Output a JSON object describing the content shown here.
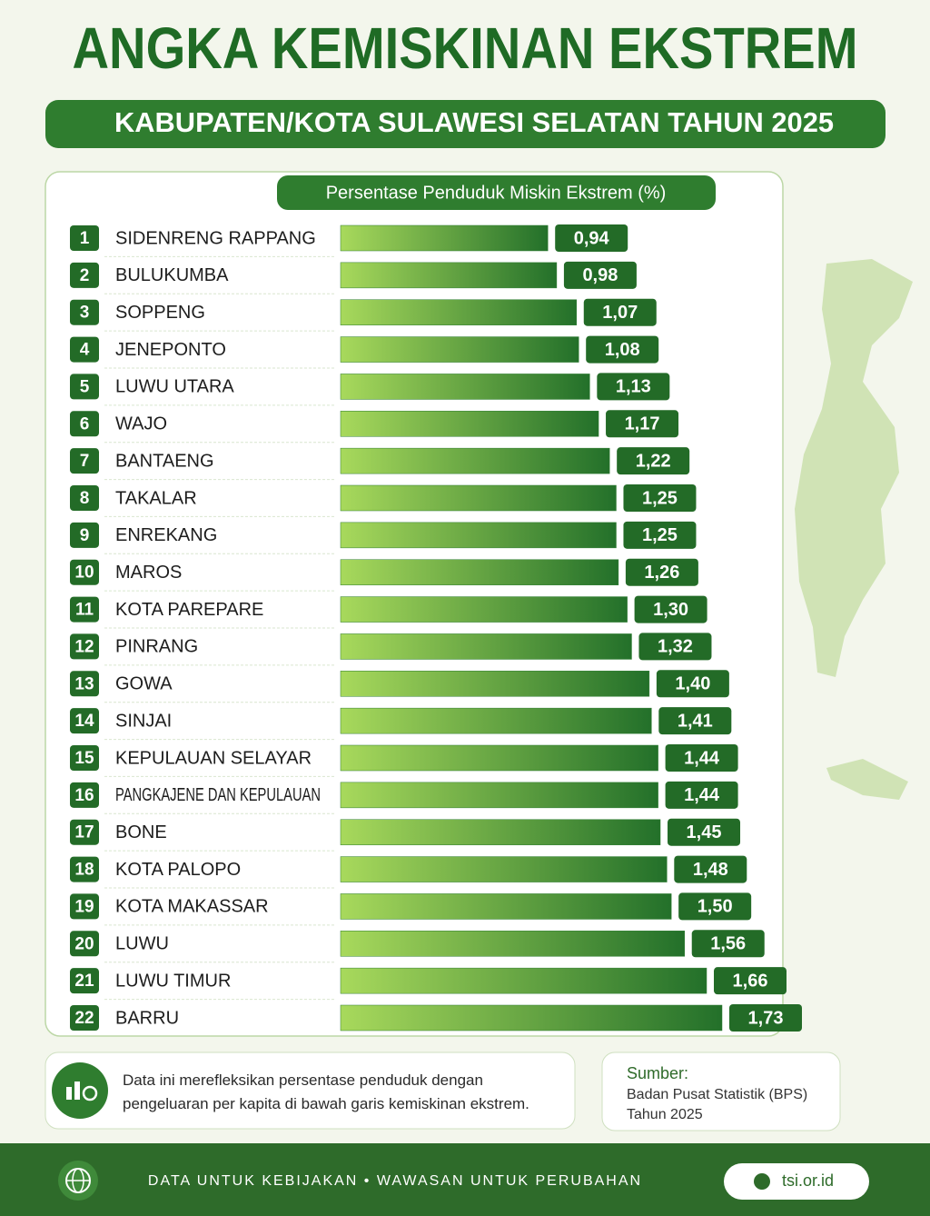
{
  "chart_data": {
    "type": "bar",
    "orientation": "horizontal",
    "title": "ANGKA KEMISKINAN EKSTREM",
    "subtitle": "KABUPATEN/KOTA SULAWESI SELATAN TAHUN 2025",
    "value_title": "Persentase Penduduk Miskin Ekstrem (%)",
    "ranks": [
      1,
      2,
      3,
      4,
      5,
      6,
      7,
      8,
      9,
      10,
      11,
      12,
      13,
      14,
      15,
      16,
      17,
      18,
      19,
      20,
      21,
      22
    ],
    "categories": [
      "SIDENRENG RAPPANG",
      "BULUKUMBA",
      "SOPPENG",
      "JENEPONTO",
      "LUWU UTARA",
      "WAJO",
      "BANTAENG",
      "TAKALAR",
      "ENREKANG",
      "MAROS",
      "KOTA PAREPARE",
      "PINRANG",
      "GOWA",
      "SINJAI",
      "KEPULAUAN SELAYAR",
      "PANGKAJENE DAN KEPULAUAN",
      "BONE",
      "KOTA PALOPO",
      "KOTA MAKASSAR",
      "LUWU",
      "LUWU TIMUR",
      "BARRU"
    ],
    "values": [
      0.94,
      0.98,
      1.07,
      1.08,
      1.13,
      1.17,
      1.22,
      1.25,
      1.25,
      1.26,
      1.3,
      1.32,
      1.4,
      1.41,
      1.44,
      1.44,
      1.45,
      1.48,
      1.5,
      1.56,
      1.66,
      1.73
    ],
    "value_labels": [
      "0,94",
      "0,98",
      "1,07",
      "1,08",
      "1,13",
      "1,17",
      "1,22",
      "1,25",
      "1,25",
      "1,26",
      "1,30",
      "1,32",
      "1,40",
      "1,41",
      "1,44",
      "1,44",
      "1,45",
      "1,48",
      "1,50",
      "1,56",
      "1,66",
      "1,73"
    ],
    "color": "#2e7d32"
  },
  "note": "Data ini merefleksikan persentase penduduk dengan pengeluaran per kapita di bawah garis kemiskinan ekstrem.",
  "source": {
    "label": "Sumber:",
    "name": "Badan Pusat Statistik (BPS)",
    "year": "Tahun 2025"
  },
  "footer": {
    "tagline": "DATA UNTUK KEBIJAKAN • WAWASAN UNTUK PERUBAHAN",
    "website": "tsi.or.id"
  }
}
